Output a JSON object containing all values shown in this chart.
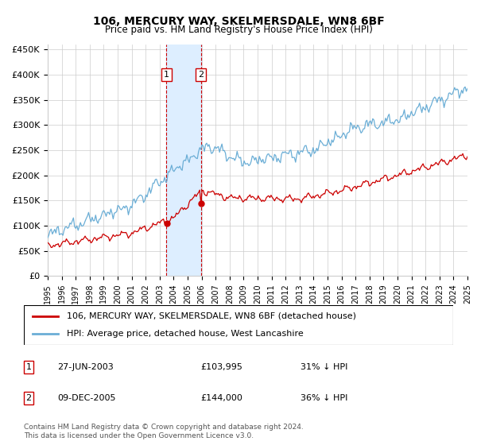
{
  "title": "106, MERCURY WAY, SKELMERSDALE, WN8 6BF",
  "subtitle": "Price paid vs. HM Land Registry's House Price Index (HPI)",
  "legend_line1": "106, MERCURY WAY, SKELMERSDALE, WN8 6BF (detached house)",
  "legend_line2": "HPI: Average price, detached house, West Lancashire",
  "transaction1_label": "1",
  "transaction1_date": "27-JUN-2003",
  "transaction1_price": "£103,995",
  "transaction1_hpi": "31% ↓ HPI",
  "transaction2_label": "2",
  "transaction2_date": "09-DEC-2005",
  "transaction2_price": "£144,000",
  "transaction2_hpi": "36% ↓ HPI",
  "footnote": "Contains HM Land Registry data © Crown copyright and database right 2024.\nThis data is licensed under the Open Government Licence v3.0.",
  "hpi_color": "#6baed6",
  "price_color": "#cc0000",
  "marker_color": "#cc0000",
  "shaded_color": "#ddeeff",
  "grid_color": "#cccccc",
  "ylim": [
    0,
    460000
  ],
  "yticks": [
    0,
    50000,
    100000,
    150000,
    200000,
    250000,
    300000,
    350000,
    400000,
    450000
  ],
  "transaction1_year": 2003.49,
  "transaction2_year": 2005.94
}
